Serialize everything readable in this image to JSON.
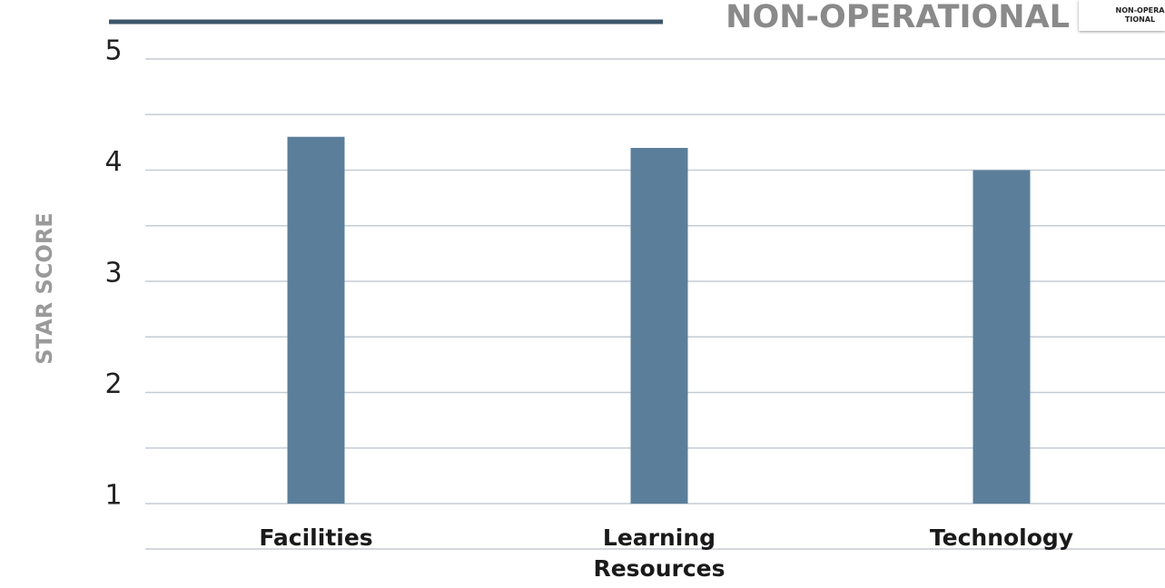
{
  "title": "NON-OPERATIONAL",
  "badge": "NON-OPERATIONAL",
  "chart_data": {
    "type": "bar",
    "y_label": "STAR SCORE",
    "categories": [
      "Facilities",
      "Learning Resources",
      "Technology"
    ],
    "values": [
      4.3,
      4.2,
      4.0
    ],
    "color": "#5b7f9b",
    "ylim": [
      1,
      5
    ],
    "yticks": [
      1,
      2,
      3,
      4,
      5
    ],
    "yticks_minor": [
      1.5,
      2.5,
      3.5,
      4.5
    ],
    "grid": true
  }
}
